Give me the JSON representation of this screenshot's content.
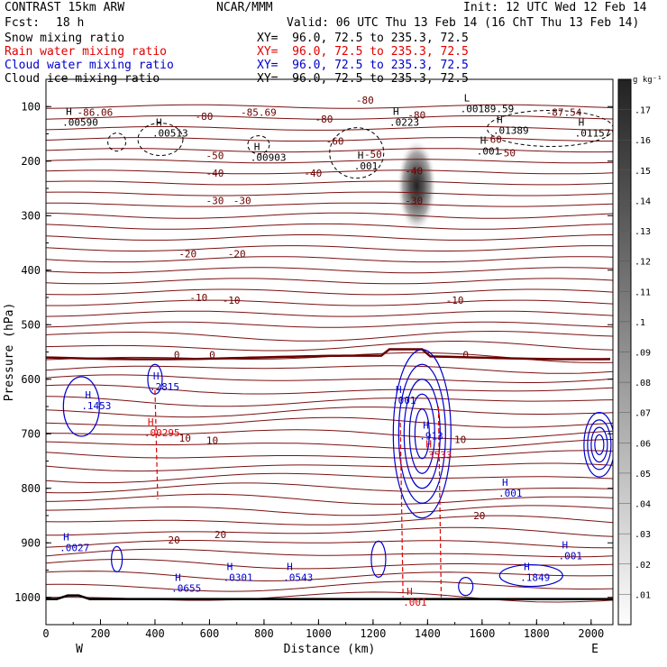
{
  "header": {
    "model": "CONTRAST 15km ARW",
    "org": "NCAR/MMM",
    "init": "Init: 12 UTC Wed 12 Feb 14",
    "fcst_label": "Fcst:",
    "fcst_value": "18 h",
    "valid": "Valid: 06 UTC Thu 13 Feb 14 (16 ChT Thu 13 Feb 14)"
  },
  "fields": [
    {
      "name": "Snow mixing ratio",
      "xy": "XY=  96.0, 72.5 to 235.3, 72.5",
      "color": "#000000"
    },
    {
      "name": "Rain water mixing ratio",
      "xy": "XY=  96.0, 72.5 to 235.3, 72.5",
      "color": "#e00000"
    },
    {
      "name": "Cloud water mixing ratio",
      "xy": "XY=  96.0, 72.5 to 235.3, 72.5",
      "color": "#0000cc"
    },
    {
      "name": "Cloud ice mixing ratio",
      "xy": "XY=  96.0, 72.5 to 235.3, 72.5",
      "color": "#000000"
    }
  ],
  "colorbar": {
    "unit": "g kg⁻¹",
    "levels": [
      ".01",
      ".02",
      ".03",
      ".04",
      ".05",
      ".06",
      ".07",
      ".08",
      ".09",
      ".1",
      ".11",
      ".12",
      ".13",
      ".14",
      ".15",
      ".16",
      ".17"
    ]
  },
  "chart_data": {
    "type": "contour",
    "xlabel": "Distance (km)",
    "ylabel": "Pressure (hPa)",
    "xlim": [
      0,
      2080
    ],
    "ylim": [
      1050,
      50
    ],
    "x_ticks": [
      "0",
      "200",
      "400",
      "600",
      "800",
      "1000",
      "1200",
      "1400",
      "1600",
      "1800",
      "2000"
    ],
    "y_ticks": [
      "100",
      "200",
      "300",
      "400",
      "500",
      "600",
      "700",
      "800",
      "900",
      "1000"
    ],
    "x_end_labels": {
      "west": "W",
      "east": "E"
    },
    "temperature_isotherms": [
      {
        "label": "-86.06",
        "x": 180,
        "p": 110
      },
      {
        "label": "-85.69",
        "x": 780,
        "p": 110
      },
      {
        "label": "-80",
        "x": 580,
        "p": 118
      },
      {
        "label": "-80",
        "x": 1020,
        "p": 123
      },
      {
        "label": "-80",
        "x": 1360,
        "p": 115
      },
      {
        "label": "-80",
        "x": 1170,
        "p": 88
      },
      {
        "label": "-87.54",
        "x": 1900,
        "p": 110
      },
      {
        "label": "-60",
        "x": 1060,
        "p": 163
      },
      {
        "label": "-60",
        "x": 1640,
        "p": 160
      },
      {
        "label": "-50",
        "x": 620,
        "p": 190
      },
      {
        "label": "-50",
        "x": 1200,
        "p": 187
      },
      {
        "label": "-50",
        "x": 1690,
        "p": 185
      },
      {
        "label": "-40",
        "x": 620,
        "p": 222
      },
      {
        "label": "-40",
        "x": 980,
        "p": 222
      },
      {
        "label": "-40",
        "x": 1350,
        "p": 218
      },
      {
        "label": "-30",
        "x": 620,
        "p": 272
      },
      {
        "label": "-30",
        "x": 720,
        "p": 272
      },
      {
        "label": "-30",
        "x": 1350,
        "p": 272
      },
      {
        "label": "-20",
        "x": 520,
        "p": 370
      },
      {
        "label": "-20",
        "x": 700,
        "p": 370
      },
      {
        "label": "-10",
        "x": 560,
        "p": 450
      },
      {
        "label": "-10",
        "x": 680,
        "p": 455
      },
      {
        "label": "-10",
        "x": 1500,
        "p": 455
      },
      {
        "label": "0",
        "x": 480,
        "p": 555
      },
      {
        "label": "0",
        "x": 610,
        "p": 555
      },
      {
        "label": "0",
        "x": 1540,
        "p": 555
      },
      {
        "label": "10",
        "x": 510,
        "p": 708
      },
      {
        "label": "10",
        "x": 610,
        "p": 712
      },
      {
        "label": "10",
        "x": 1520,
        "p": 710
      },
      {
        "label": "20",
        "x": 470,
        "p": 895
      },
      {
        "label": "20",
        "x": 640,
        "p": 885
      },
      {
        "label": "20",
        "x": 1590,
        "p": 850
      }
    ],
    "cloud_ice_maxmin": [
      {
        "kind": "H",
        "value": ".00590",
        "x": 60,
        "p": 125,
        "color": "black"
      },
      {
        "kind": "H",
        "value": ".00513",
        "x": 390,
        "p": 145,
        "color": "black"
      },
      {
        "kind": "H",
        "value": ".00903",
        "x": 750,
        "p": 190,
        "color": "black"
      },
      {
        "kind": "H",
        "value": ".001",
        "x": 1130,
        "p": 205,
        "color": "black"
      },
      {
        "kind": "H",
        "value": ".0223",
        "x": 1260,
        "p": 125,
        "color": "black"
      },
      {
        "kind": "L",
        "value": ".00189.59",
        "x": 1520,
        "p": 100,
        "color": "black"
      },
      {
        "kind": "H",
        "value": ".01389",
        "x": 1640,
        "p": 140,
        "color": "black"
      },
      {
        "kind": "H",
        "value": ".01157",
        "x": 1940,
        "p": 145,
        "color": "black"
      },
      {
        "kind": "H",
        "value": ".001",
        "x": 1580,
        "p": 178,
        "color": "black"
      }
    ],
    "cloud_water_maxmin": [
      {
        "kind": "H",
        "value": ".1453",
        "x": 130,
        "p": 645,
        "color": "blue"
      },
      {
        "kind": "H",
        "value": ".2815",
        "x": 380,
        "p": 610,
        "color": "blue"
      },
      {
        "kind": "H",
        "value": ".913",
        "x": 1370,
        "p": 700,
        "color": "blue"
      },
      {
        "kind": "H",
        "value": ".001",
        "x": 1270,
        "p": 635,
        "color": "blue"
      },
      {
        "kind": "H",
        "value": ".001",
        "x": 1660,
        "p": 805,
        "color": "blue"
      },
      {
        "kind": "H",
        "value": ".0027",
        "x": 50,
        "p": 905,
        "color": "blue"
      },
      {
        "kind": "H",
        "value": ".0655",
        "x": 460,
        "p": 980,
        "color": "blue"
      },
      {
        "kind": "H",
        "value": ".0301",
        "x": 650,
        "p": 960,
        "color": "blue"
      },
      {
        "kind": "H",
        "value": ".0543",
        "x": 870,
        "p": 960,
        "color": "blue"
      },
      {
        "kind": "H",
        "value": ".1849",
        "x": 1740,
        "p": 960,
        "color": "blue"
      },
      {
        "kind": "H",
        "value": ".001",
        "x": 1880,
        "p": 920,
        "color": "blue"
      }
    ],
    "rain_water_maxmin": [
      {
        "kind": "H",
        "value": ".00295",
        "x": 360,
        "p": 695,
        "color": "red"
      },
      {
        "kind": "H",
        "value": ".3533",
        "x": 1380,
        "p": 735,
        "color": "red"
      },
      {
        "kind": "H",
        "value": ".001",
        "x": 1310,
        "p": 1005,
        "color": "red"
      }
    ],
    "snow_shading_max": {
      "x": 1360,
      "p": 245,
      "value": 0.17
    }
  }
}
